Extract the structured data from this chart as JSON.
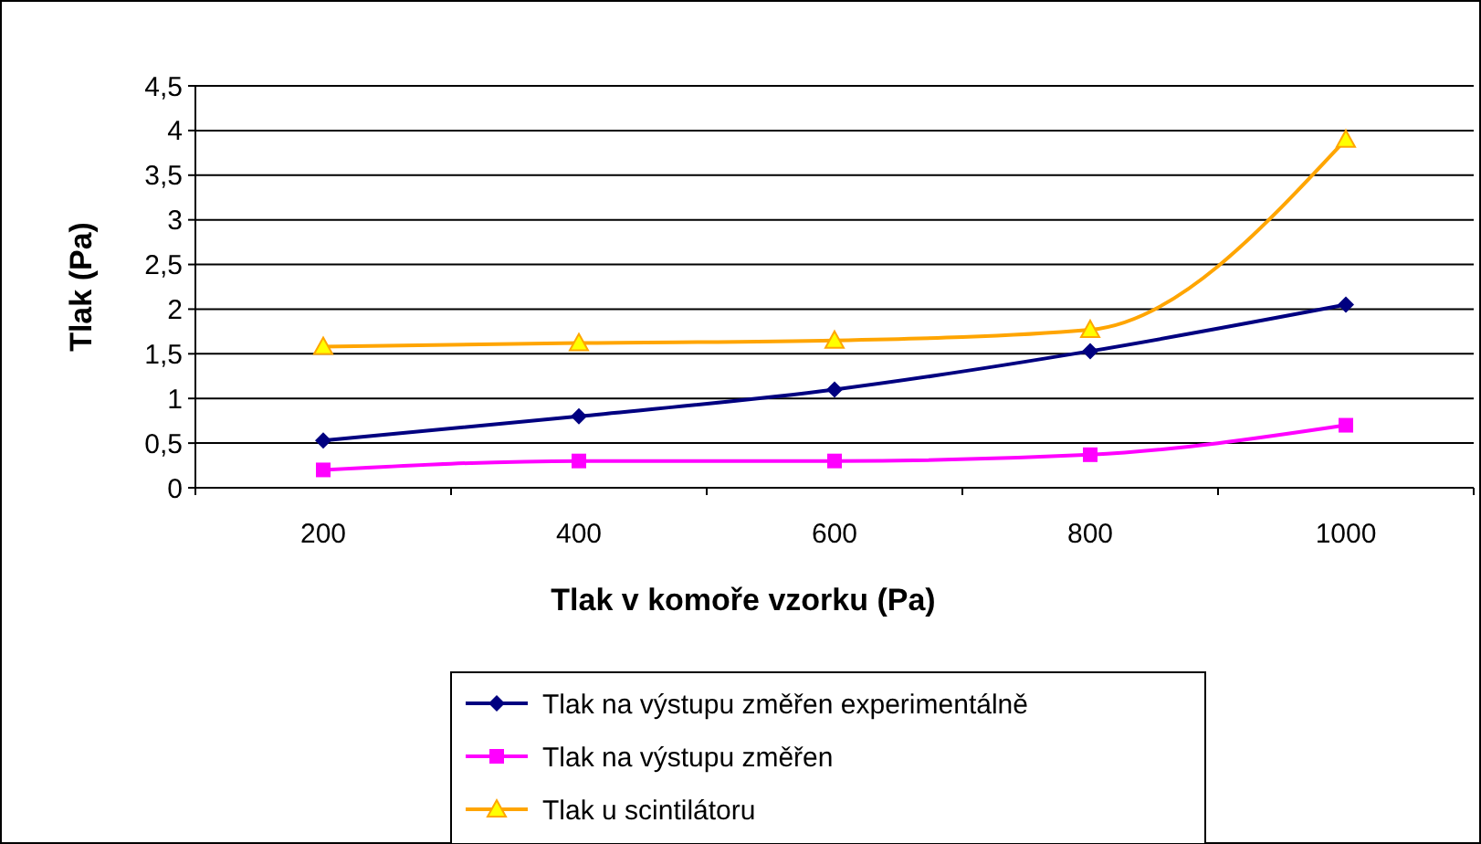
{
  "chart_data": {
    "type": "line",
    "xlabel": "Tlak v komoře vzorku (Pa)",
    "ylabel": "Tlak (Pa)",
    "categories": [
      "200",
      "400",
      "600",
      "800",
      "1000"
    ],
    "ylim": [
      0,
      4.5
    ],
    "yticks": [
      0,
      {
        "value": 0.5,
        "label": "0,5"
      },
      1,
      {
        "value": 1.5,
        "label": "1,5"
      },
      2,
      {
        "value": 2.5,
        "label": "2,5"
      },
      3,
      {
        "value": 3.5,
        "label": "3,5"
      },
      4,
      {
        "value": 4.5,
        "label": "4,5"
      }
    ],
    "grid": "y",
    "legend": "bottom",
    "series": [
      {
        "name": "Tlak na výstupu změřen experimentálně",
        "color": "#000080",
        "marker": "diamond",
        "values": [
          0.53,
          0.8,
          1.1,
          1.53,
          2.05
        ]
      },
      {
        "name": "Tlak na výstupu změřen",
        "color": "#ff00ff",
        "marker": "square",
        "values": [
          0.2,
          0.3,
          0.3,
          0.37,
          0.7
        ]
      },
      {
        "name": "Tlak u scintilátoru",
        "color": "#ffa500",
        "marker": "triangle",
        "values": [
          1.58,
          1.62,
          1.65,
          1.77,
          3.9
        ]
      }
    ]
  }
}
